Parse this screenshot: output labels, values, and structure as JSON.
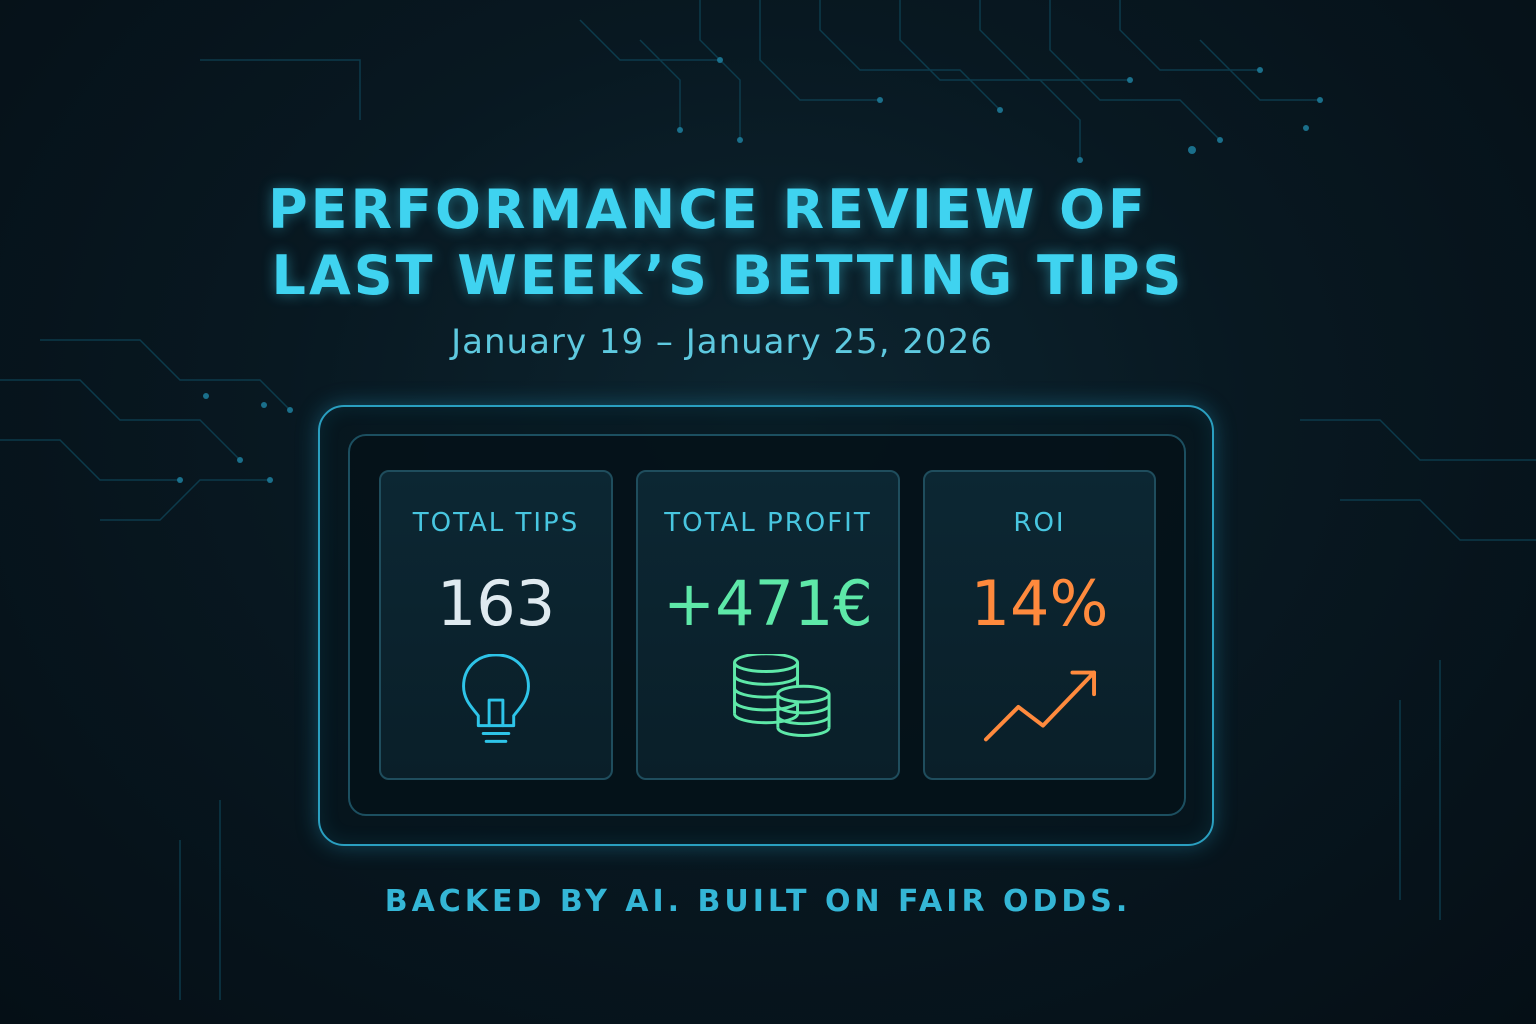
{
  "header": {
    "title_line1": "PERFORMANCE REVIEW OF",
    "title_line2": "LAST WEEK’S BETTING TIPS",
    "date_range": "January 19 – January 25, 2026"
  },
  "stats": [
    {
      "label": "TOTAL TIPS",
      "value": "163",
      "icon": "lightbulb-icon",
      "color": "#dfeaf0",
      "icon_color": "#2ec4e8"
    },
    {
      "label": "TOTAL PROFIT",
      "value": "+471€",
      "icon": "coins-icon",
      "color": "#5ee8a8",
      "icon_color": "#5ee8a8"
    },
    {
      "label": "ROI",
      "value": "14%",
      "icon": "trending-up-icon",
      "color": "#ff8a3d",
      "icon_color": "#ff8a3d"
    }
  ],
  "footer": {
    "tagline": "BACKED BY AI. BUILT ON FAIR ODDS."
  },
  "colors": {
    "accent": "#3fd3f0",
    "background": "#081821"
  }
}
